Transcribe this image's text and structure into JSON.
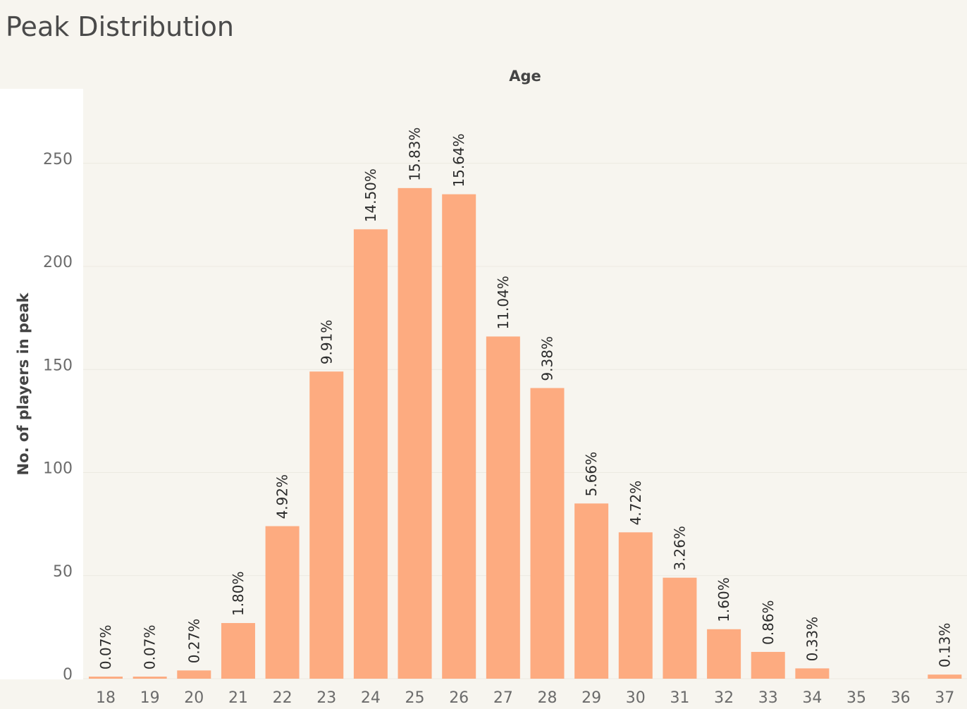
{
  "page": {
    "title": "Peak Distribution"
  },
  "chart_data": {
    "type": "bar",
    "title": "Peak Distribution",
    "xlabel": "Age",
    "ylabel": "No. of players in peak",
    "ylim": [
      -5,
      285
    ],
    "yticks": [
      0,
      50,
      100,
      150,
      200,
      250
    ],
    "categories": [
      "18",
      "19",
      "20",
      "21",
      "22",
      "23",
      "24",
      "25",
      "26",
      "27",
      "28",
      "29",
      "30",
      "31",
      "32",
      "33",
      "34",
      "35",
      "36",
      "37"
    ],
    "values": [
      1,
      1,
      4,
      27,
      74,
      149,
      218,
      238,
      235,
      166,
      141,
      85,
      71,
      49,
      24,
      13,
      5,
      0,
      0,
      2
    ],
    "labels": [
      "0.07%",
      "0.07%",
      "0.27%",
      "1.80%",
      "4.92%",
      "9.91%",
      "14.50%",
      "15.83%",
      "15.64%",
      "11.04%",
      "9.38%",
      "5.66%",
      "4.72%",
      "3.26%",
      "1.60%",
      "0.86%",
      "0.33%",
      "",
      "",
      "0.13%"
    ],
    "bar_color": "#fdab80",
    "grid": "horizontal",
    "legend": "none"
  }
}
